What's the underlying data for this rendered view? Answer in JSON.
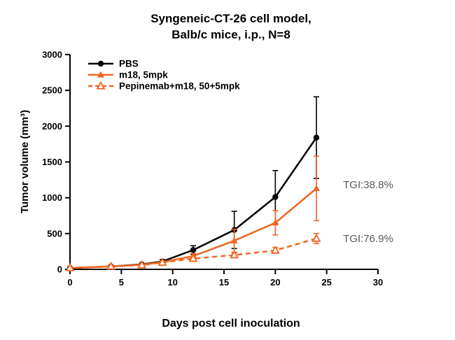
{
  "chart_data": {
    "type": "line",
    "title_lines": [
      "Syngeneic-CT-26 cell model,",
      "Balb/c mice, i.p., N=8"
    ],
    "xlabel": "Days post cell inoculation",
    "ylabel": "Tumor volume (mm³)",
    "xlim": [
      0,
      30
    ],
    "ylim": [
      0,
      3000
    ],
    "xticks": [
      0,
      5,
      10,
      15,
      20,
      25,
      30
    ],
    "yticks": [
      0,
      500,
      1000,
      1500,
      2000,
      2500,
      3000
    ],
    "grid": false,
    "legend_position": "top-left-inside",
    "x": [
      0,
      4,
      7,
      9,
      12,
      16,
      20,
      24
    ],
    "series": [
      {
        "name": "PBS",
        "color": "#000000",
        "marker": "circle",
        "dashed": false,
        "values": [
          20,
          40,
          70,
          110,
          270,
          550,
          1010,
          1840
        ],
        "errors": [
          0,
          5,
          10,
          25,
          60,
          260,
          370,
          570
        ]
      },
      {
        "name": "m18, 5mpk",
        "color": "#F26522",
        "marker": "triangle",
        "dashed": false,
        "values": [
          20,
          40,
          65,
          100,
          185,
          400,
          650,
          1130
        ],
        "errors": [
          0,
          5,
          10,
          20,
          35,
          160,
          170,
          450
        ]
      },
      {
        "name": "Pepinemab+m18, 50+5mpk",
        "color": "#F26522",
        "marker": "triangle-open",
        "dashed": true,
        "values": [
          20,
          40,
          60,
          95,
          150,
          200,
          265,
          430
        ],
        "errors": [
          0,
          5,
          10,
          15,
          25,
          30,
          40,
          70
        ]
      }
    ],
    "annotations": [
      {
        "text": "TGI:38.8%",
        "x": 26.6,
        "y": 1180,
        "color": "#595959"
      },
      {
        "text": "TGI:76.9%",
        "x": 26.6,
        "y": 430,
        "color": "#595959"
      }
    ],
    "colors": {
      "axis": "#000000",
      "orange": "#F26522",
      "annotation_gray": "#595959"
    }
  }
}
